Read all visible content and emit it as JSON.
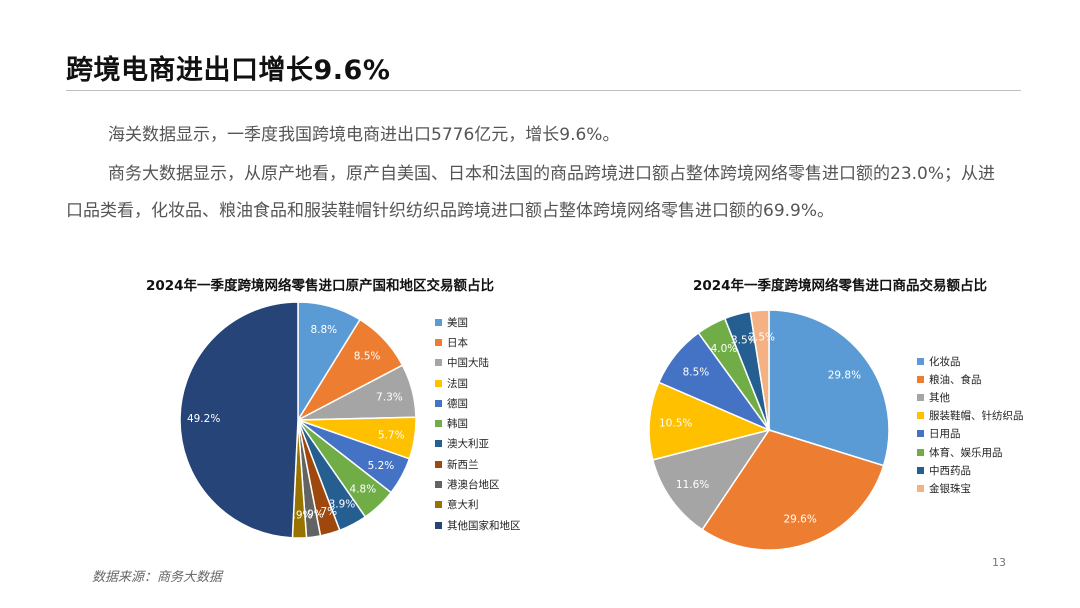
{
  "title": "跨境电商进出口增长9.6%",
  "paragraphs": [
    "海关数据显示，一季度我国跨境电商进出口5776亿元，增长9.6%。",
    "商务大数据显示，从原产地看，原产自美国、日本和法国的商品跨境进口额占整体跨境网络零售进口额的23.0%；从进口品类看，化妆品、粮油食品和服装鞋帽针织纺织品跨境进口额占整体跨境网络零售进口额的69.9%。"
  ],
  "source": "数据来源：商务大数据",
  "page_number": "13",
  "chart_data": [
    {
      "type": "pie",
      "title": "2024年一季度跨境网络零售进口原产国和地区交易额占比",
      "categories": [
        "美国",
        "日本",
        "中国大陆",
        "法国",
        "德国",
        "韩国",
        "澳大利亚",
        "新西兰",
        "港澳台地区",
        "意大利",
        "其他国家和地区"
      ],
      "values": [
        8.8,
        8.5,
        7.3,
        5.7,
        5.2,
        4.8,
        3.9,
        2.7,
        1.9,
        1.9,
        49.2
      ],
      "labels": [
        "8.8%",
        "8.5%",
        "7.3%",
        "5.7%",
        "5.2%",
        "4.8%",
        "3.9%",
        "2.7%",
        "1.9%",
        "1.9%",
        "49.2%"
      ],
      "colors": [
        "#5b9bd5",
        "#ed7d31",
        "#a5a5a5",
        "#ffc000",
        "#4472c4",
        "#70ad47",
        "#255e91",
        "#9e480e",
        "#636363",
        "#997300",
        "#264478"
      ],
      "label_colors": [
        "#ffffff",
        "#ffffff",
        "#ffffff",
        "#ffffff",
        "#ffffff",
        "#ffffff",
        "#ffffff",
        "#ffffff",
        "#ffffff",
        "#ffffff",
        "#ffffff"
      ],
      "legend_position": "right"
    },
    {
      "type": "pie",
      "title": "2024年一季度跨境网络零售进口商品交易额占比",
      "categories": [
        "化妆品",
        "粮油、食品",
        "其他",
        "服装鞋帽、针纺织品",
        "日用品",
        "体育、娱乐用品",
        "中西药品",
        "金银珠宝"
      ],
      "values": [
        29.8,
        29.6,
        11.6,
        10.5,
        8.5,
        4.0,
        3.5,
        2.5
      ],
      "labels": [
        "29.8%",
        "29.6%",
        "11.6%",
        "10.5%",
        "8.5%",
        "4.0%",
        "3.5%",
        "2.5%"
      ],
      "colors": [
        "#5b9bd5",
        "#ed7d31",
        "#a5a5a5",
        "#ffc000",
        "#4472c4",
        "#70ad47",
        "#255e91",
        "#f4b183"
      ],
      "label_colors": [
        "#ffffff",
        "#ffffff",
        "#ffffff",
        "#ffffff",
        "#ffffff",
        "#ffffff",
        "#ffffff",
        "#ffffff"
      ],
      "legend_position": "right"
    }
  ]
}
